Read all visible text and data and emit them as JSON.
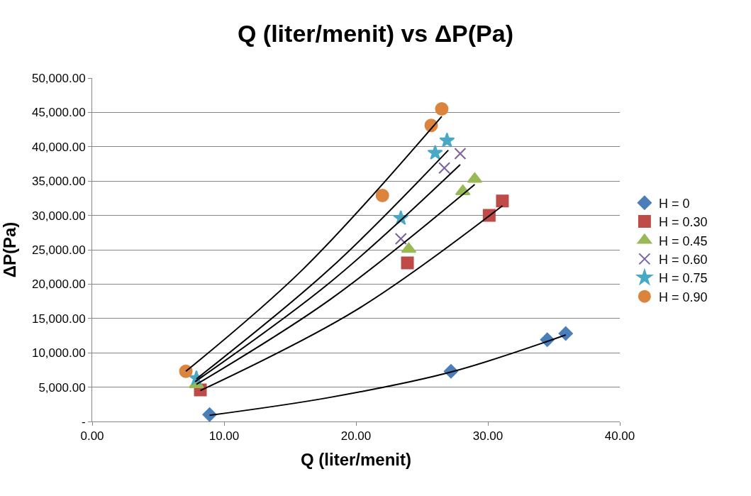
{
  "chart_data": {
    "type": "scatter",
    "title": "Q (liter/menit) vs ΔP(Pa)",
    "xlabel": "Q (liter/menit)",
    "ylabel": "ΔP(Pa)",
    "xlim": [
      0,
      40
    ],
    "ylim": [
      0,
      50000
    ],
    "xticks": [
      {
        "value": 0,
        "label": "0.00"
      },
      {
        "value": 10,
        "label": "10.00"
      },
      {
        "value": 20,
        "label": "20.00"
      },
      {
        "value": 30,
        "label": "30.00"
      },
      {
        "value": 40,
        "label": "40.00"
      }
    ],
    "yticks": [
      {
        "value": 0,
        "label": "-"
      },
      {
        "value": 5000,
        "label": "5,000.00"
      },
      {
        "value": 10000,
        "label": "10,000.00"
      },
      {
        "value": 15000,
        "label": "15,000.00"
      },
      {
        "value": 20000,
        "label": "20,000.00"
      },
      {
        "value": 25000,
        "label": "25,000.00"
      },
      {
        "value": 30000,
        "label": "30,000.00"
      },
      {
        "value": 35000,
        "label": "35,000.00"
      },
      {
        "value": 40000,
        "label": "40,000.00"
      },
      {
        "value": 45000,
        "label": "45,000.00"
      },
      {
        "value": 50000,
        "label": "50,000.00"
      }
    ],
    "grid": "y",
    "legend": "right",
    "series": [
      {
        "name": "H = 0",
        "color": "#4a7ebb",
        "marker": "diamond",
        "x": [
          8.9,
          27.2,
          34.5,
          35.9
        ],
        "values": [
          1000,
          7300,
          11900,
          12800
        ]
      },
      {
        "name": "H = 0.30",
        "color": "#be4b48",
        "marker": "square",
        "x": [
          8.2,
          23.9,
          30.1,
          31.1
        ],
        "values": [
          4600,
          23100,
          30000,
          32100
        ]
      },
      {
        "name": "H = 0.45",
        "color": "#98b954",
        "marker": "triangle",
        "x": [
          7.9,
          24.0,
          28.1,
          29.0
        ],
        "values": [
          5400,
          25100,
          33500,
          35300
        ]
      },
      {
        "name": "H = 0.60",
        "color": "#7d60a0",
        "marker": "cross",
        "x": [
          23.4,
          26.7,
          27.9
        ],
        "values": [
          26600,
          36900,
          39000
        ]
      },
      {
        "name": "H = 0.75",
        "color": "#46aac5",
        "marker": "star",
        "x": [
          7.9,
          23.4,
          26.0,
          26.9
        ],
        "values": [
          6300,
          29600,
          39100,
          40900
        ]
      },
      {
        "name": "H = 0.90",
        "color": "#db843d",
        "marker": "circle",
        "x": [
          7.1,
          22.0,
          25.7,
          26.5
        ],
        "values": [
          7300,
          32900,
          43100,
          45500
        ]
      },
      {
        "type": "line",
        "color": "#000000",
        "marker": "none",
        "x": [
          8.9,
          18,
          27.2,
          35.9
        ],
        "values": [
          900,
          3500,
          7200,
          12600
        ]
      },
      {
        "type": "line",
        "color": "#000000",
        "marker": "none",
        "x": [
          8.2,
          20,
          31.1
        ],
        "values": [
          4500,
          16200,
          31400
        ]
      },
      {
        "type": "line",
        "color": "#000000",
        "marker": "none",
        "x": [
          7.9,
          18,
          29.0
        ],
        "values": [
          5400,
          17700,
          34500
        ]
      },
      {
        "type": "line",
        "color": "#000000",
        "marker": "none",
        "x": [
          7.8,
          18,
          27.9
        ],
        "values": [
          5800,
          20200,
          37400
        ]
      },
      {
        "type": "line",
        "color": "#000000",
        "marker": "none",
        "x": [
          7.9,
          18,
          27.0
        ],
        "values": [
          6200,
          22200,
          39500
        ]
      },
      {
        "type": "line",
        "color": "#000000",
        "marker": "none",
        "x": [
          7.1,
          16,
          26.5
        ],
        "values": [
          7300,
          22200,
          44400
        ]
      }
    ]
  }
}
